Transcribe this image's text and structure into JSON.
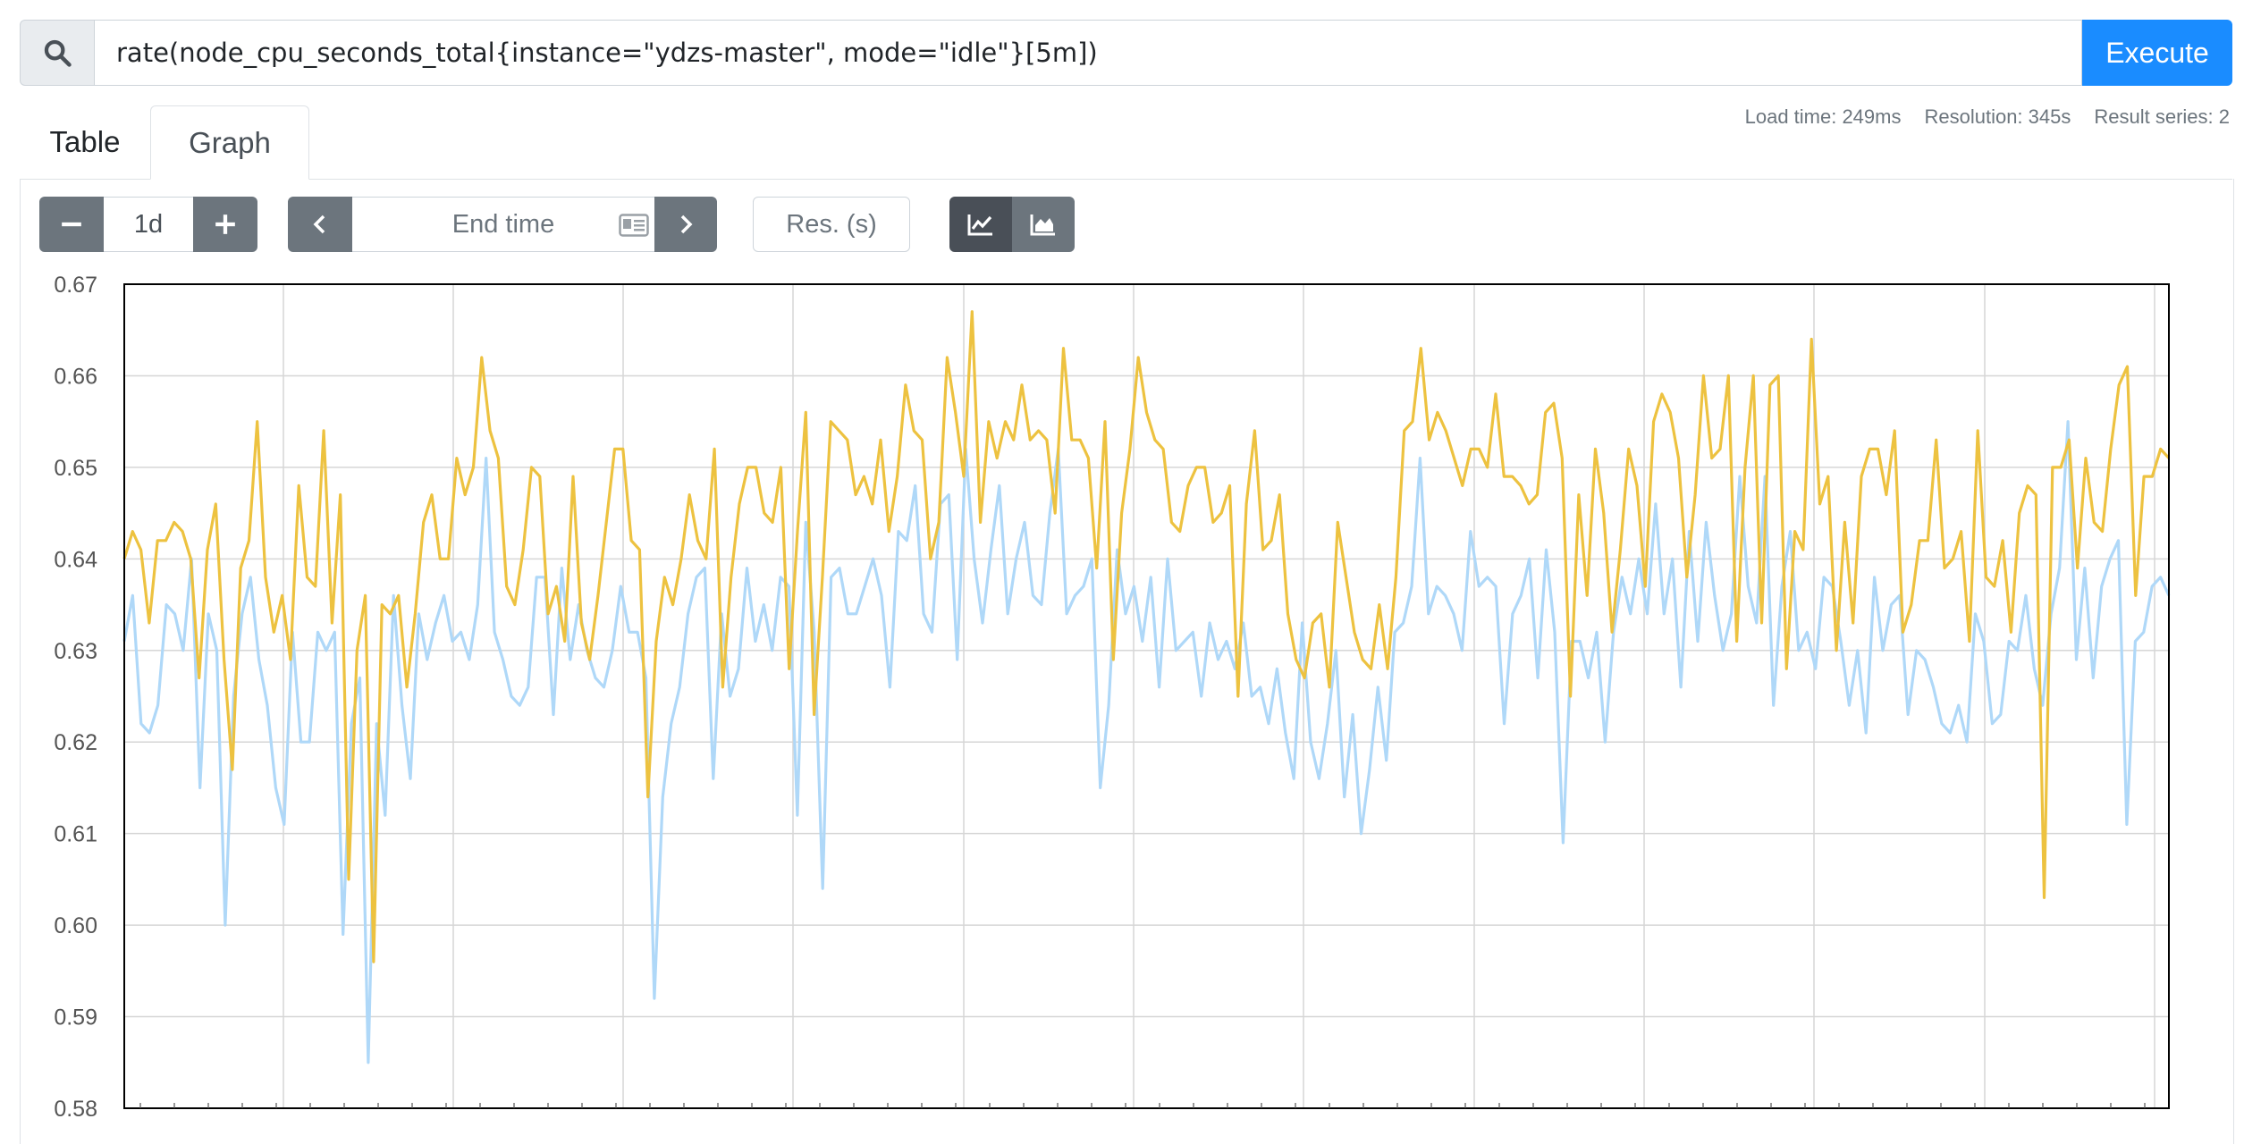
{
  "query": {
    "expression": "rate(node_cpu_seconds_total{instance=\"ydzs-master\", mode=\"idle\"}[5m])",
    "search_icon": "search-icon",
    "execute_label": "Execute"
  },
  "stats": {
    "load_time": "Load time: 249ms",
    "resolution": "Resolution: 345s",
    "result_series": "Result series: 2"
  },
  "tabs": [
    {
      "label": "Table",
      "active": false
    },
    {
      "label": "Graph",
      "active": true
    }
  ],
  "controls": {
    "range_value": "1d",
    "end_time_placeholder": "End time",
    "resolution_placeholder": "Res. (s)",
    "icons": [
      "minus-icon",
      "plus-icon",
      "chevron-left-icon",
      "calendar-icon",
      "chevron-right-icon",
      "line-chart-icon",
      "stacked-area-icon"
    ]
  },
  "colors": {
    "execute": "#1a8cff",
    "button_gray": "#6c757d",
    "series_1": "#edc240",
    "series_2": "#afd8f8"
  },
  "chart_data": {
    "type": "line",
    "ylim": [
      0.58,
      0.67
    ],
    "yticks": [
      "0.67",
      "0.66",
      "0.65",
      "0.64",
      "0.63",
      "0.62",
      "0.61",
      "0.60",
      "0.59",
      "0.58"
    ],
    "grid": true,
    "series": [
      {
        "color": "#edc240",
        "values": [
          0.64,
          0.643,
          0.641,
          0.633,
          0.642,
          0.642,
          0.644,
          0.643,
          0.64,
          0.627,
          0.641,
          0.646,
          0.629,
          0.617,
          0.639,
          0.642,
          0.655,
          0.638,
          0.632,
          0.636,
          0.629,
          0.648,
          0.638,
          0.637,
          0.654,
          0.633,
          0.647,
          0.605,
          0.63,
          0.636,
          0.596,
          0.635,
          0.634,
          0.636,
          0.626,
          0.634,
          0.644,
          0.647,
          0.64,
          0.64,
          0.651,
          0.647,
          0.65,
          0.662,
          0.654,
          0.651,
          0.637,
          0.635,
          0.641,
          0.65,
          0.649,
          0.634,
          0.637,
          0.631,
          0.649,
          0.633,
          0.629,
          0.636,
          0.644,
          0.652,
          0.652,
          0.642,
          0.641,
          0.614,
          0.631,
          0.638,
          0.635,
          0.64,
          0.647,
          0.642,
          0.64,
          0.652,
          0.626,
          0.638,
          0.646,
          0.65,
          0.65,
          0.645,
          0.644,
          0.65,
          0.628,
          0.643,
          0.656,
          0.623,
          0.638,
          0.655,
          0.654,
          0.653,
          0.647,
          0.649,
          0.646,
          0.653,
          0.643,
          0.649,
          0.659,
          0.654,
          0.653,
          0.64,
          0.644,
          0.662,
          0.656,
          0.649,
          0.667,
          0.644,
          0.655,
          0.651,
          0.655,
          0.653,
          0.659,
          0.653,
          0.654,
          0.653,
          0.645,
          0.663,
          0.653,
          0.653,
          0.651,
          0.639,
          0.655,
          0.629,
          0.645,
          0.652,
          0.662,
          0.656,
          0.653,
          0.652,
          0.644,
          0.643,
          0.648,
          0.65,
          0.65,
          0.644,
          0.645,
          0.648,
          0.625,
          0.646,
          0.654,
          0.641,
          0.642,
          0.647,
          0.634,
          0.629,
          0.627,
          0.633,
          0.634,
          0.626,
          0.644,
          0.638,
          0.632,
          0.629,
          0.628,
          0.635,
          0.628,
          0.638,
          0.654,
          0.655,
          0.663,
          0.653,
          0.656,
          0.654,
          0.651,
          0.648,
          0.652,
          0.652,
          0.65,
          0.658,
          0.649,
          0.649,
          0.648,
          0.646,
          0.647,
          0.656,
          0.657,
          0.651,
          0.625,
          0.647,
          0.636,
          0.652,
          0.645,
          0.632,
          0.641,
          0.652,
          0.648,
          0.637,
          0.655,
          0.658,
          0.656,
          0.651,
          0.638,
          0.647,
          0.66,
          0.651,
          0.652,
          0.66,
          0.631,
          0.65,
          0.66,
          0.633,
          0.659,
          0.66,
          0.628,
          0.643,
          0.641,
          0.664,
          0.646,
          0.649,
          0.63,
          0.644,
          0.633,
          0.649,
          0.652,
          0.652,
          0.647,
          0.654,
          0.632,
          0.635,
          0.642,
          0.642,
          0.653,
          0.639,
          0.64,
          0.643,
          0.631,
          0.654,
          0.638,
          0.637,
          0.642,
          0.632,
          0.645,
          0.648,
          0.647,
          0.603,
          0.65,
          0.65,
          0.653,
          0.639,
          0.651,
          0.644,
          0.643,
          0.652,
          0.659,
          0.661,
          0.636,
          0.649,
          0.649,
          0.652,
          0.651
        ]
      },
      {
        "color": "#afd8f8",
        "values": [
          0.631,
          0.636,
          0.622,
          0.621,
          0.624,
          0.635,
          0.634,
          0.63,
          0.64,
          0.615,
          0.634,
          0.63,
          0.6,
          0.625,
          0.634,
          0.638,
          0.629,
          0.624,
          0.615,
          0.611,
          0.632,
          0.62,
          0.62,
          0.632,
          0.63,
          0.632,
          0.599,
          0.622,
          0.627,
          0.585,
          0.622,
          0.612,
          0.636,
          0.624,
          0.616,
          0.634,
          0.629,
          0.633,
          0.636,
          0.631,
          0.632,
          0.629,
          0.635,
          0.651,
          0.632,
          0.629,
          0.625,
          0.624,
          0.626,
          0.638,
          0.638,
          0.623,
          0.639,
          0.629,
          0.635,
          0.63,
          0.627,
          0.626,
          0.63,
          0.637,
          0.632,
          0.632,
          0.627,
          0.592,
          0.614,
          0.622,
          0.626,
          0.634,
          0.638,
          0.639,
          0.616,
          0.634,
          0.625,
          0.628,
          0.639,
          0.631,
          0.635,
          0.63,
          0.638,
          0.637,
          0.612,
          0.644,
          0.632,
          0.604,
          0.638,
          0.639,
          0.634,
          0.634,
          0.637,
          0.64,
          0.636,
          0.626,
          0.643,
          0.642,
          0.648,
          0.634,
          0.632,
          0.646,
          0.647,
          0.629,
          0.652,
          0.64,
          0.633,
          0.641,
          0.648,
          0.634,
          0.64,
          0.644,
          0.636,
          0.635,
          0.645,
          0.652,
          0.634,
          0.636,
          0.637,
          0.64,
          0.615,
          0.624,
          0.641,
          0.634,
          0.637,
          0.631,
          0.638,
          0.626,
          0.64,
          0.63,
          0.631,
          0.632,
          0.625,
          0.633,
          0.629,
          0.631,
          0.628,
          0.633,
          0.625,
          0.626,
          0.622,
          0.628,
          0.621,
          0.616,
          0.633,
          0.62,
          0.616,
          0.622,
          0.63,
          0.614,
          0.623,
          0.61,
          0.617,
          0.626,
          0.618,
          0.632,
          0.633,
          0.637,
          0.651,
          0.634,
          0.637,
          0.636,
          0.634,
          0.63,
          0.643,
          0.637,
          0.638,
          0.637,
          0.622,
          0.634,
          0.636,
          0.64,
          0.627,
          0.641,
          0.632,
          0.609,
          0.631,
          0.631,
          0.627,
          0.632,
          0.62,
          0.632,
          0.638,
          0.634,
          0.64,
          0.634,
          0.646,
          0.634,
          0.64,
          0.626,
          0.643,
          0.631,
          0.644,
          0.636,
          0.63,
          0.634,
          0.649,
          0.637,
          0.633,
          0.649,
          0.624,
          0.637,
          0.643,
          0.63,
          0.632,
          0.628,
          0.638,
          0.637,
          0.631,
          0.624,
          0.63,
          0.621,
          0.638,
          0.63,
          0.635,
          0.636,
          0.623,
          0.63,
          0.629,
          0.626,
          0.622,
          0.621,
          0.624,
          0.62,
          0.634,
          0.631,
          0.622,
          0.623,
          0.631,
          0.63,
          0.636,
          0.628,
          0.624,
          0.634,
          0.639,
          0.655,
          0.629,
          0.639,
          0.627,
          0.637,
          0.64,
          0.642,
          0.611,
          0.631,
          0.632,
          0.637,
          0.638,
          0.636
        ]
      }
    ]
  }
}
